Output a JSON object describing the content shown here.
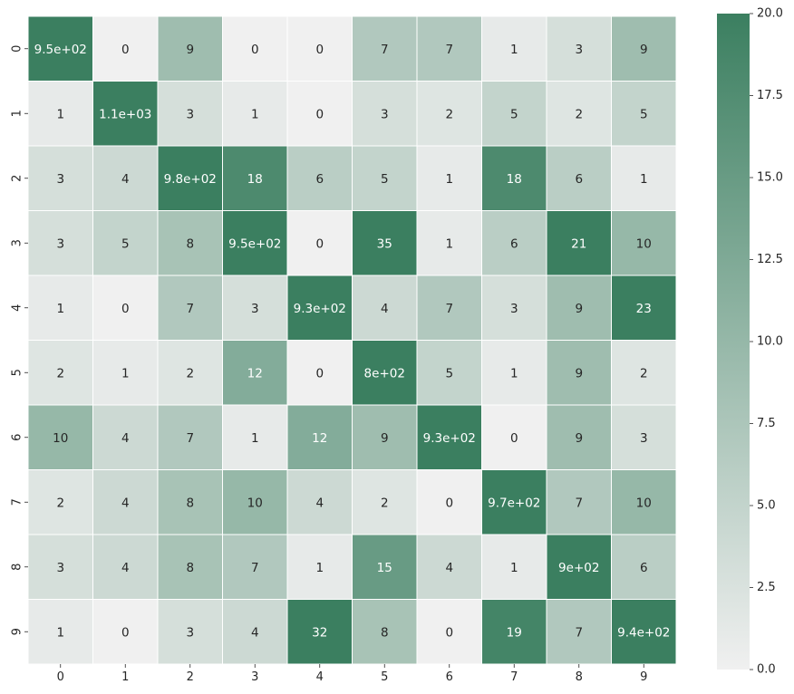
{
  "chart_data": {
    "type": "heatmap",
    "title": "",
    "xlabel": "",
    "ylabel": "",
    "x_categories": [
      "0",
      "1",
      "2",
      "3",
      "4",
      "5",
      "6",
      "7",
      "8",
      "9"
    ],
    "y_categories": [
      "0",
      "1",
      "2",
      "3",
      "4",
      "5",
      "6",
      "7",
      "8",
      "9"
    ],
    "values": [
      [
        950,
        0,
        9,
        0,
        0,
        7,
        7,
        1,
        3,
        9
      ],
      [
        1,
        1100,
        3,
        1,
        0,
        3,
        2,
        5,
        2,
        5
      ],
      [
        3,
        4,
        980,
        18,
        6,
        5,
        1,
        18,
        6,
        1
      ],
      [
        3,
        5,
        8,
        950,
        0,
        35,
        1,
        6,
        21,
        10
      ],
      [
        1,
        0,
        7,
        3,
        930,
        4,
        7,
        3,
        9,
        23
      ],
      [
        2,
        1,
        2,
        12,
        0,
        800,
        5,
        1,
        9,
        2
      ],
      [
        10,
        4,
        7,
        1,
        12,
        9,
        930,
        0,
        9,
        3
      ],
      [
        2,
        4,
        8,
        10,
        4,
        2,
        0,
        970,
        7,
        10
      ],
      [
        3,
        4,
        8,
        7,
        1,
        15,
        4,
        1,
        900,
        6
      ],
      [
        1,
        0,
        3,
        4,
        32,
        8,
        0,
        19,
        7,
        940
      ]
    ],
    "annotations": [
      [
        "9.5e+02",
        "0",
        "9",
        "0",
        "0",
        "7",
        "7",
        "1",
        "3",
        "9"
      ],
      [
        "1",
        "1.1e+03",
        "3",
        "1",
        "0",
        "3",
        "2",
        "5",
        "2",
        "5"
      ],
      [
        "3",
        "4",
        "9.8e+02",
        "18",
        "6",
        "5",
        "1",
        "18",
        "6",
        "1"
      ],
      [
        "3",
        "5",
        "8",
        "9.5e+02",
        "0",
        "35",
        "1",
        "6",
        "21",
        "10"
      ],
      [
        "1",
        "0",
        "7",
        "3",
        "9.3e+02",
        "4",
        "7",
        "3",
        "9",
        "23"
      ],
      [
        "2",
        "1",
        "2",
        "12",
        "0",
        "8e+02",
        "5",
        "1",
        "9",
        "2"
      ],
      [
        "10",
        "4",
        "7",
        "1",
        "12",
        "9",
        "9.3e+02",
        "0",
        "9",
        "3"
      ],
      [
        "2",
        "4",
        "8",
        "10",
        "4",
        "2",
        "0",
        "9.7e+02",
        "7",
        "10"
      ],
      [
        "3",
        "4",
        "8",
        "7",
        "1",
        "15",
        "4",
        "1",
        "9e+02",
        "6"
      ],
      [
        "1",
        "0",
        "3",
        "4",
        "32",
        "8",
        "0",
        "19",
        "7",
        "9.4e+02"
      ]
    ],
    "colorbar": {
      "vmin": 0,
      "vmax": 20,
      "ticks": [
        "0.0",
        "2.5",
        "5.0",
        "7.5",
        "10.0",
        "12.5",
        "15.0",
        "17.5",
        "20.0"
      ],
      "color_low": "#f0f0f0",
      "color_high": "#3b7f60"
    },
    "grid_line_color": "#ffffff",
    "grid": false
  }
}
